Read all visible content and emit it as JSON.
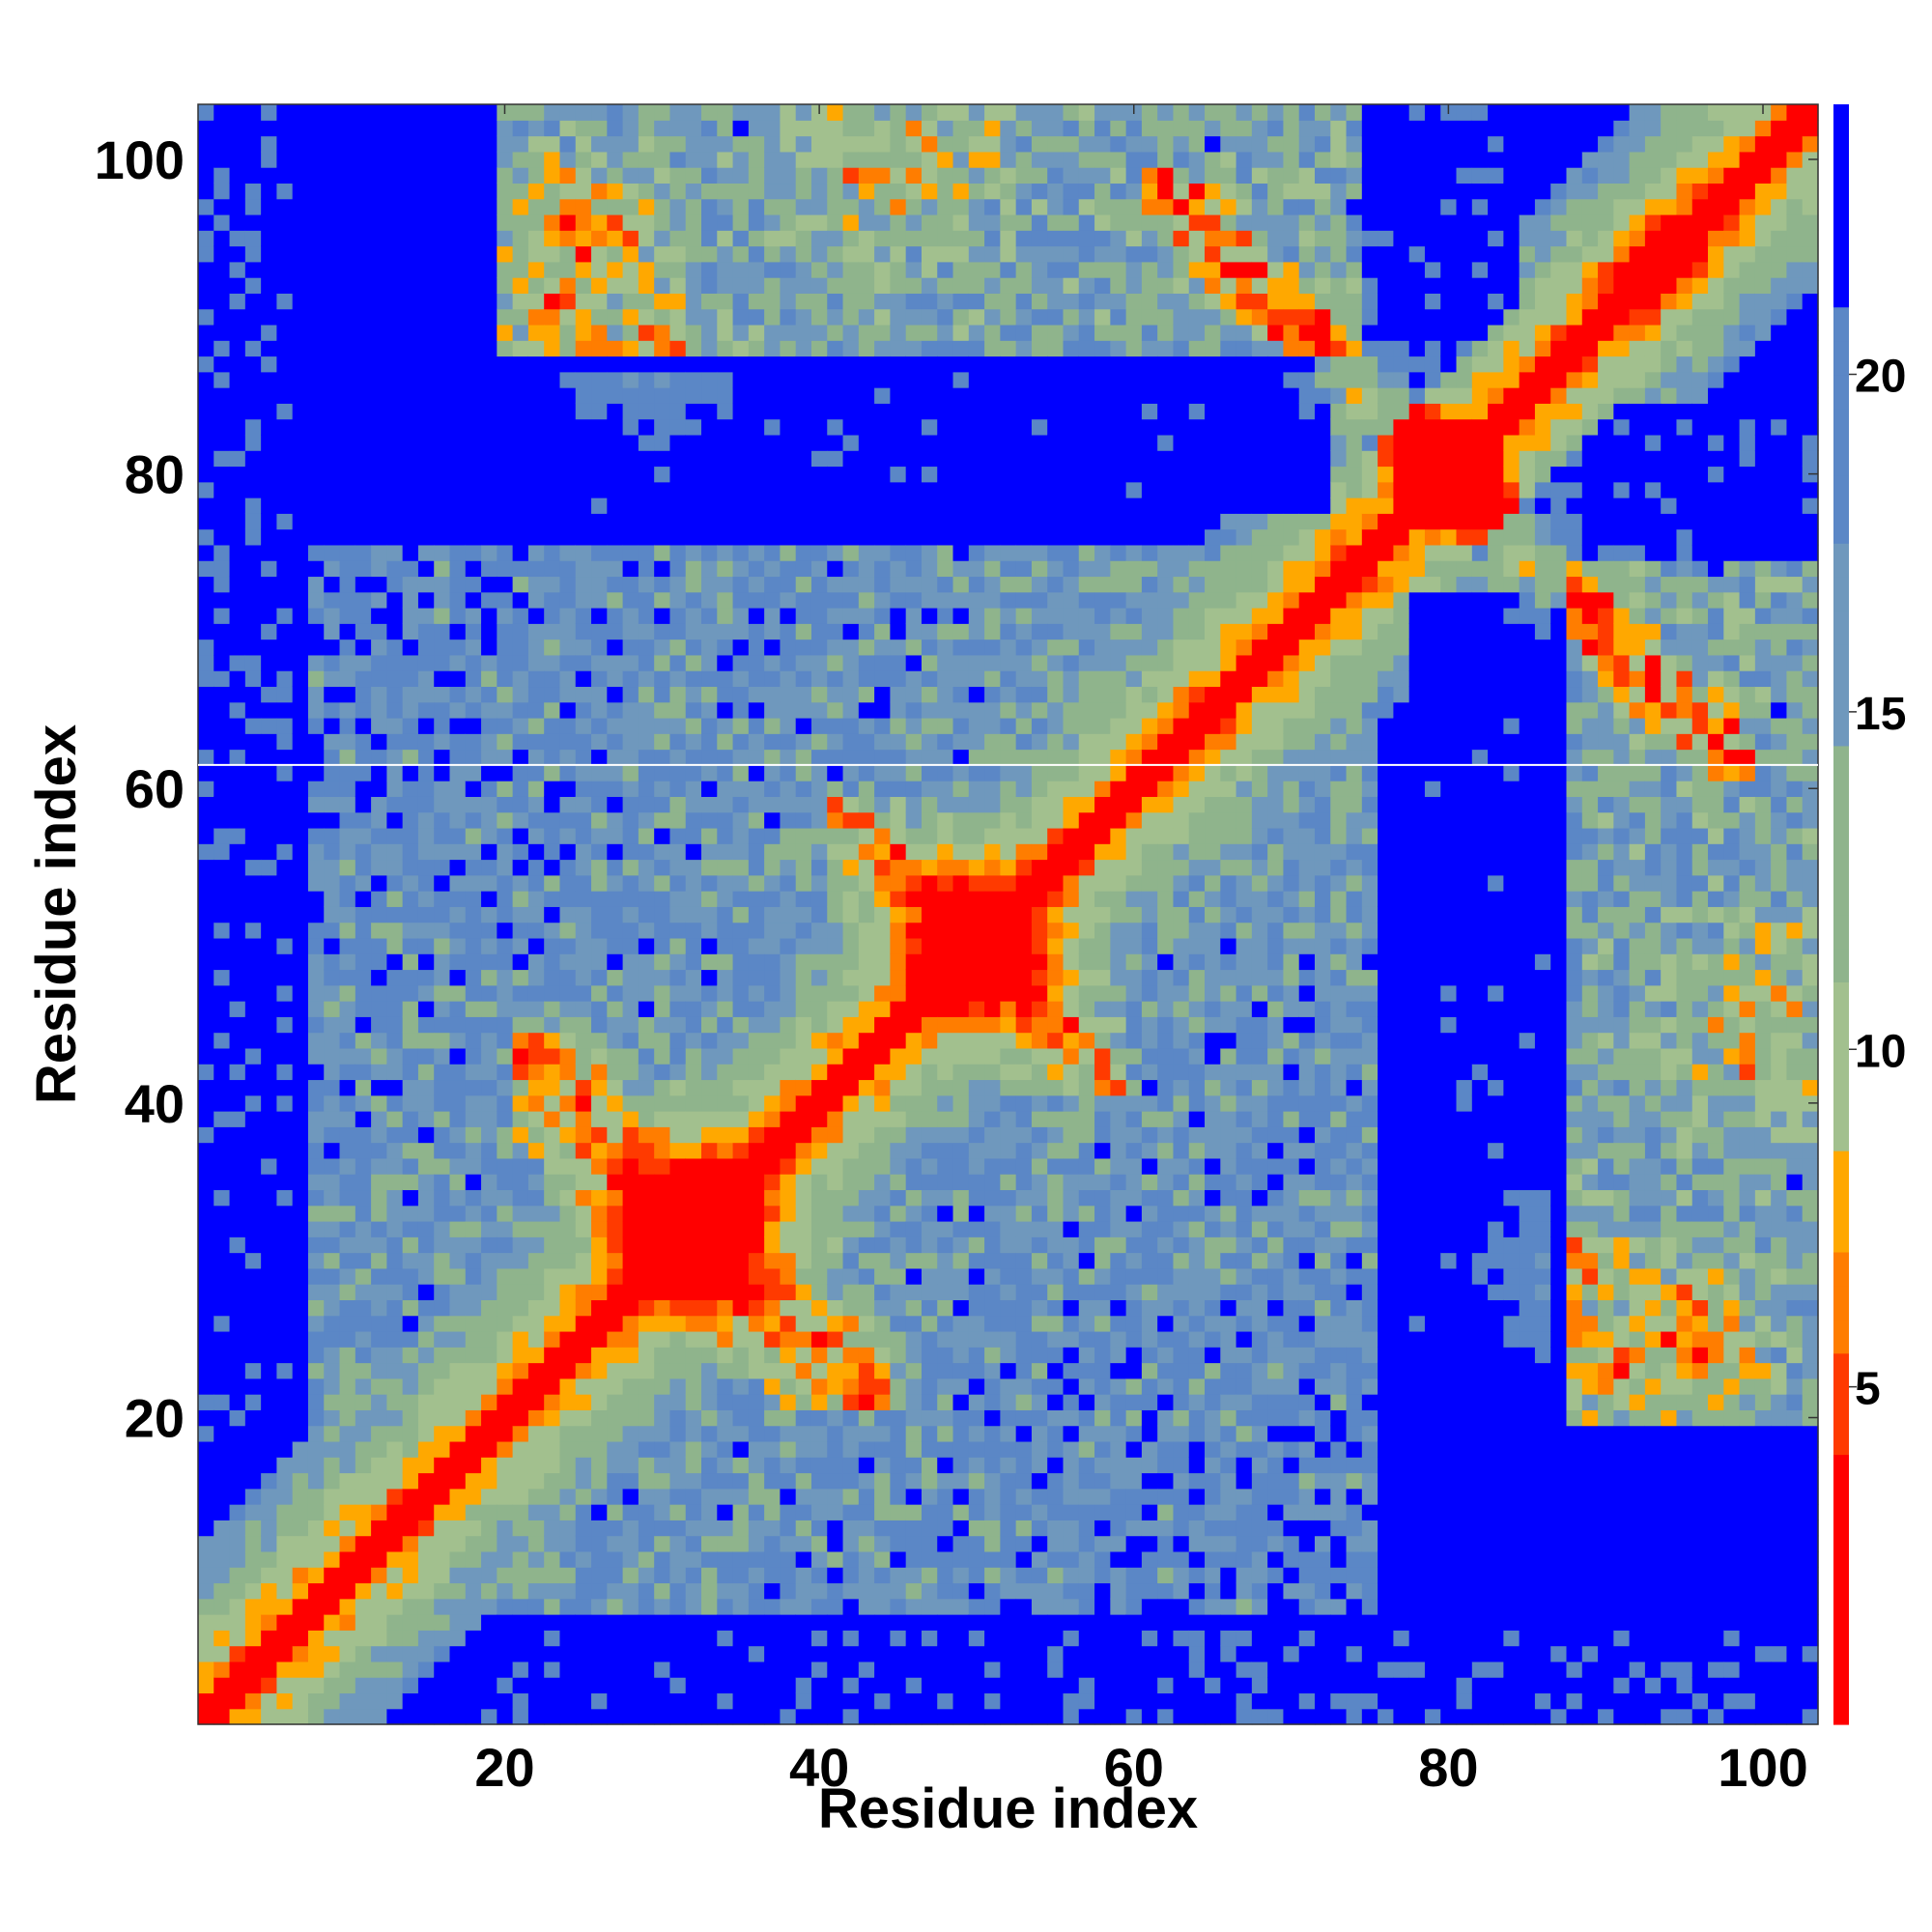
{
  "chart_data": {
    "type": "heatmap",
    "title": "",
    "xlabel": "Residue index",
    "ylabel": "Residue index",
    "n_residues": 103,
    "xlim": [
      1,
      103
    ],
    "ylim": [
      1,
      103
    ],
    "x_ticks": [
      20,
      40,
      60,
      80,
      100
    ],
    "y_ticks": [
      20,
      40,
      60,
      80,
      100
    ],
    "colorbar": {
      "ticks": [
        5,
        10,
        15,
        20
      ],
      "range": [
        0,
        24
      ],
      "placement": "right"
    },
    "colors": {
      "high": "#0000ff",
      "steelblue": "#5b87c6",
      "slate": "#6f98bd",
      "sage": "#8fb48c",
      "pale": "#a2c08e",
      "amber": "#ffa800",
      "orange": "#ff7d00",
      "redorange": "#ff3a00",
      "red": "#ff0000"
    },
    "description_of_structure": "Symmetric residue-residue distance map; red main diagonal, orange near-diagonal bands, a bright cross feature at residue ~80 (antidiagonal band ~65-95), large blue regions of distant residue pairs."
  }
}
